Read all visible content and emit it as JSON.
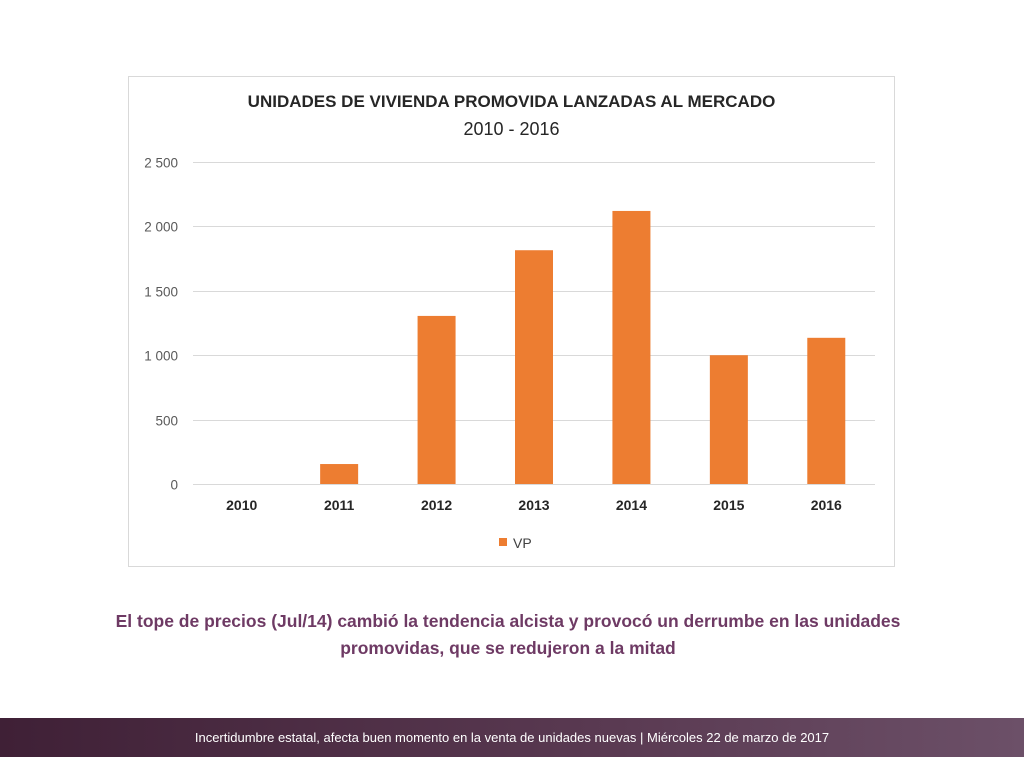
{
  "chart_data": {
    "type": "bar",
    "title": "UNIDADES DE VIVIENDA PROMOVIDA LANZADAS AL MERCADO",
    "subtitle": "2010 - 2016",
    "categories": [
      "2010",
      "2011",
      "2012",
      "2013",
      "2014",
      "2015",
      "2016"
    ],
    "series": [
      {
        "name": "VP",
        "values": [
          0,
          155,
          1305,
          1815,
          2120,
          1000,
          1135
        ],
        "color": "#ED7D31"
      }
    ],
    "ylim": [
      0,
      2500
    ],
    "yticks": [
      0,
      500,
      1000,
      1500,
      2000,
      2500
    ],
    "ytick_labels": [
      "0",
      "500",
      "1 000",
      "1 500",
      "2 000",
      "2 500"
    ],
    "grid": true,
    "legend": "bottom"
  },
  "caption": "El tope de precios (Jul/14) cambió la tendencia alcista y provocó un derrumbe en las unidades promovidas, que se redujeron a la mitad",
  "footer": "Incertidumbre estatal, afecta buen momento en la venta de unidades nuevas | Miércoles 22 de marzo de 2017",
  "theme": {
    "caption_color": "#6E3A64",
    "gridline_color": "#D9D9D9",
    "footer_gradient": [
      "#3F2036",
      "#5A3A52",
      "#6C5068"
    ]
  }
}
